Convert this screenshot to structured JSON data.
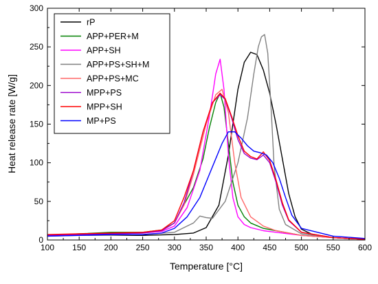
{
  "chart_data": {
    "type": "line",
    "xlabel": "Temperature [°C]",
    "ylabel": "Heat release rate [W/g]",
    "xlim": [
      100,
      600
    ],
    "ylim": [
      0,
      300
    ],
    "xticks": [
      100,
      150,
      200,
      250,
      300,
      350,
      400,
      450,
      500,
      550,
      600
    ],
    "yticks": [
      0,
      50,
      100,
      150,
      200,
      250,
      300
    ],
    "grid": false,
    "legend_position": "top-left",
    "series": [
      {
        "name": "rP",
        "color": "#000000",
        "x": [
          100,
          150,
          200,
          250,
          300,
          330,
          350,
          370,
          385,
          400,
          410,
          420,
          430,
          440,
          450,
          460,
          470,
          480,
          490,
          500,
          520,
          550,
          600
        ],
        "y": [
          6,
          6,
          6,
          6,
          7,
          9,
          16,
          45,
          110,
          195,
          230,
          243,
          240,
          220,
          190,
          150,
          105,
          60,
          30,
          14,
          6,
          3,
          1
        ]
      },
      {
        "name": "APP+PER+M",
        "color": "#008000",
        "x": [
          100,
          150,
          200,
          250,
          280,
          300,
          310,
          330,
          345,
          355,
          365,
          372,
          378,
          385,
          392,
          400,
          410,
          420,
          440,
          460,
          500,
          550,
          600
        ],
        "y": [
          6,
          8,
          10,
          10,
          13,
          22,
          38,
          68,
          105,
          145,
          178,
          190,
          172,
          125,
          75,
          45,
          30,
          22,
          15,
          12,
          6,
          3,
          1
        ]
      },
      {
        "name": "APP+SH",
        "color": "#ff00ff",
        "x": [
          100,
          150,
          200,
          250,
          280,
          300,
          320,
          340,
          355,
          365,
          372,
          378,
          385,
          392,
          400,
          410,
          420,
          440,
          460,
          500,
          550,
          600
        ],
        "y": [
          6,
          7,
          8,
          9,
          11,
          18,
          42,
          90,
          160,
          215,
          234,
          195,
          110,
          55,
          30,
          20,
          16,
          12,
          10,
          6,
          3,
          1
        ]
      },
      {
        "name": "APP+PS+SH+M",
        "color": "#808080",
        "x": [
          100,
          150,
          200,
          250,
          300,
          330,
          340,
          350,
          360,
          380,
          400,
          415,
          425,
          432,
          437,
          442,
          447,
          452,
          457,
          465,
          475,
          500,
          550,
          600
        ],
        "y": [
          5,
          6,
          6,
          7,
          10,
          22,
          31,
          29,
          28,
          50,
          100,
          158,
          215,
          250,
          263,
          266,
          242,
          175,
          95,
          40,
          20,
          8,
          3,
          1
        ]
      },
      {
        "name": "APP+PS+MC",
        "color": "#ff6666",
        "x": [
          100,
          150,
          200,
          250,
          280,
          300,
          315,
          330,
          350,
          365,
          375,
          385,
          395,
          405,
          420,
          440,
          460,
          500,
          550,
          600
        ],
        "y": [
          6,
          7,
          8,
          9,
          12,
          22,
          45,
          85,
          150,
          188,
          195,
          165,
          100,
          55,
          30,
          18,
          12,
          6,
          3,
          1
        ]
      },
      {
        "name": "MPP+PS",
        "color": "#9900cc",
        "x": [
          100,
          150,
          200,
          250,
          280,
          300,
          315,
          330,
          345,
          360,
          372,
          380,
          390,
          400,
          410,
          420,
          430,
          440,
          450,
          460,
          470,
          480,
          500,
          550,
          600
        ],
        "y": [
          6,
          7,
          8,
          9,
          12,
          22,
          48,
          90,
          140,
          178,
          188,
          182,
          158,
          130,
          112,
          106,
          104,
          110,
          100,
          75,
          45,
          25,
          10,
          3,
          1
        ]
      },
      {
        "name": "MPP+SH",
        "color": "#ff0000",
        "x": [
          100,
          150,
          200,
          250,
          280,
          300,
          315,
          330,
          345,
          360,
          372,
          380,
          390,
          400,
          410,
          420,
          430,
          440,
          450,
          460,
          470,
          480,
          500,
          550,
          600
        ],
        "y": [
          7,
          8,
          9,
          10,
          13,
          25,
          55,
          90,
          140,
          178,
          190,
          183,
          160,
          135,
          115,
          108,
          105,
          114,
          103,
          78,
          48,
          26,
          10,
          3,
          1
        ]
      },
      {
        "name": "MP+PS",
        "color": "#0000ff",
        "x": [
          100,
          150,
          200,
          250,
          280,
          300,
          320,
          340,
          360,
          375,
          385,
          395,
          405,
          415,
          425,
          435,
          445,
          455,
          465,
          475,
          485,
          500,
          550,
          600
        ],
        "y": [
          5,
          6,
          7,
          7,
          9,
          15,
          30,
          55,
          95,
          125,
          140,
          140,
          132,
          122,
          115,
          113,
          110,
          100,
          80,
          55,
          32,
          15,
          5,
          2
        ]
      }
    ]
  }
}
